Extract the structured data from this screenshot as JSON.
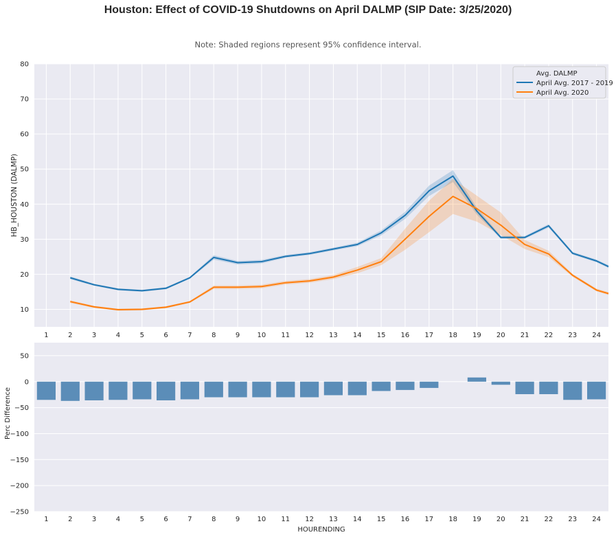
{
  "figure": {
    "title": "Houston: Effect of COVID-19 Shutdowns on April DALMP (SIP Date: 3/25/2020)",
    "subtitle": "Note: Shaded regions represent 95% confidence interval.",
    "background": "#eaeaf2"
  },
  "chart_data": [
    {
      "type": "line",
      "ylabel": "HB_HOUSTON (DALMP)",
      "xlabel": "",
      "ylim": [
        5,
        80
      ],
      "yticks": [
        10,
        20,
        30,
        40,
        50,
        60,
        70,
        80
      ],
      "x": [
        1,
        2,
        3,
        4,
        5,
        6,
        7,
        8,
        9,
        10,
        11,
        12,
        13,
        14,
        15,
        16,
        17,
        18,
        19,
        20,
        21,
        22,
        23,
        24
      ],
      "grid": true,
      "legend": {
        "title": "Avg. DALMP",
        "position": "top-right"
      },
      "series": [
        {
          "name": "April Avg. 2017 - 2019",
          "color": "#1f77b4",
          "x": [
            2,
            3,
            4,
            5,
            6,
            7,
            8,
            9,
            10,
            11,
            12,
            13,
            14,
            15,
            16,
            17,
            18,
            19,
            20,
            21,
            22,
            23,
            24,
            24.5
          ],
          "values": [
            19.0,
            17.0,
            15.7,
            15.3,
            16.0,
            19.0,
            24.8,
            23.3,
            23.6,
            25.1,
            25.9,
            27.2,
            28.5,
            31.8,
            36.8,
            43.8,
            48.0,
            38.0,
            30.5,
            30.5,
            33.8,
            26.0,
            23.8,
            22.2
          ],
          "ci_lower": [
            18.6,
            16.7,
            15.4,
            15.0,
            15.7,
            18.7,
            24.2,
            22.8,
            23.1,
            24.7,
            25.5,
            26.8,
            28.0,
            31.1,
            35.8,
            42.3,
            46.3,
            37.0,
            30.1,
            30.1,
            33.3,
            25.6,
            23.4,
            21.8
          ],
          "ci_upper": [
            19.4,
            17.3,
            16.0,
            15.6,
            16.3,
            19.3,
            25.4,
            23.8,
            24.1,
            25.5,
            26.3,
            27.6,
            29.0,
            32.5,
            37.8,
            45.3,
            49.7,
            39.0,
            30.9,
            30.9,
            34.3,
            26.4,
            24.2,
            22.6
          ]
        },
        {
          "name": "April Avg. 2020",
          "color": "#ff7f0e",
          "x": [
            2,
            3,
            4,
            5,
            6,
            7,
            8,
            9,
            10,
            11,
            12,
            13,
            14,
            15,
            16,
            17,
            18,
            19,
            20,
            21,
            22,
            23,
            24,
            24.5
          ],
          "values": [
            12.2,
            10.7,
            9.9,
            10.0,
            10.6,
            12.1,
            16.3,
            16.3,
            16.5,
            17.6,
            18.1,
            19.2,
            21.2,
            23.6,
            30.0,
            36.5,
            42.2,
            38.7,
            34.0,
            28.5,
            25.8,
            19.7,
            15.5,
            14.5
          ],
          "ci_lower": [
            11.8,
            10.4,
            9.6,
            9.7,
            10.3,
            11.8,
            15.8,
            15.8,
            16.0,
            17.1,
            17.6,
            18.6,
            20.3,
            22.6,
            27.0,
            32.0,
            37.2,
            35.0,
            31.2,
            27.2,
            24.9,
            19.3,
            15.1,
            14.1
          ],
          "ci_upper": [
            12.6,
            11.0,
            10.2,
            10.3,
            10.9,
            12.4,
            16.8,
            16.8,
            17.0,
            18.1,
            18.6,
            19.8,
            22.1,
            24.6,
            33.0,
            41.0,
            47.2,
            42.4,
            37.6,
            29.8,
            26.7,
            20.1,
            15.9,
            14.9
          ]
        }
      ]
    },
    {
      "type": "bar",
      "ylabel": "Perc Difference",
      "xlabel": "HOURENDING",
      "ylim": [
        -250,
        75
      ],
      "yticks": [
        50,
        0,
        -50,
        -100,
        -150,
        -200,
        -250
      ],
      "categories": [
        "1",
        "2",
        "3",
        "4",
        "5",
        "6",
        "7",
        "8",
        "9",
        "10",
        "11",
        "12",
        "13",
        "14",
        "15",
        "16",
        "17",
        "18",
        "19",
        "20",
        "21",
        "22",
        "23",
        "24"
      ],
      "values": [
        -35,
        -37,
        -36,
        -35,
        -34,
        -36,
        -34,
        -30,
        -30,
        -30,
        -30,
        -30,
        -26,
        -26,
        -18,
        -16,
        -12,
        0,
        8,
        -6,
        -24,
        -24,
        -35,
        -34
      ],
      "color": "#5b8db8",
      "grid": true
    }
  ]
}
